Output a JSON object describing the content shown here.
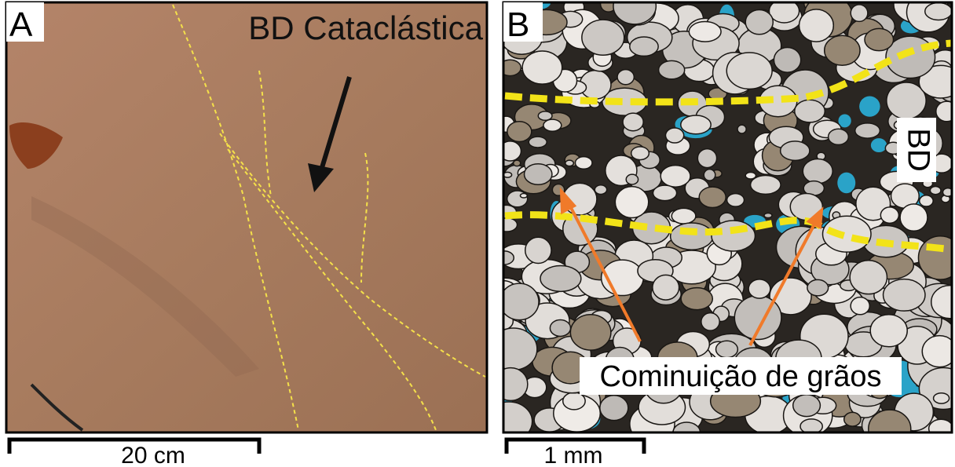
{
  "panels": [
    {
      "label": "A",
      "title": "BD Cataclástica",
      "scale_bar": "20 cm"
    },
    {
      "label": "B",
      "side_label": "BD",
      "annotation": "Cominuição de grãos",
      "scale_bar": "1 mm"
    }
  ]
}
